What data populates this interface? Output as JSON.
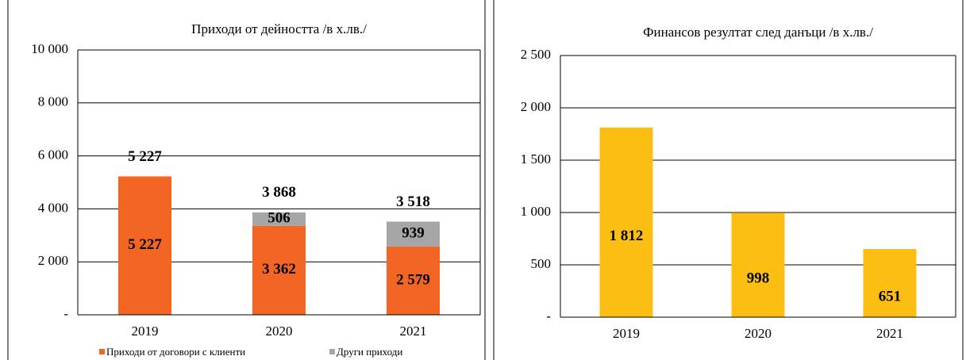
{
  "chart_data": [
    {
      "type": "stacked_bar",
      "title": "Приходи от дейността /в х.лв./",
      "categories": [
        "2019",
        "2020",
        "2021"
      ],
      "series": [
        {
          "name": "Приходи от договори с клиенти",
          "color": "#f26522",
          "values": [
            5227,
            3362,
            2579
          ],
          "value_labels": [
            "5 227",
            "3 362",
            "2 579"
          ]
        },
        {
          "name": "Други приходи",
          "color": "#a6a6a6",
          "values": [
            null,
            506,
            939
          ],
          "value_labels": [
            null,
            "506",
            "939"
          ]
        }
      ],
      "totals": [
        5227,
        3868,
        3518
      ],
      "total_labels": [
        "5 227",
        "3 868",
        "3 518"
      ],
      "ylim": [
        0,
        10000
      ],
      "yticks": [
        {
          "value": 0,
          "label": "-"
        },
        {
          "value": 2000,
          "label": "2 000"
        },
        {
          "value": 4000,
          "label": "4 000"
        },
        {
          "value": 6000,
          "label": "6 000"
        },
        {
          "value": 8000,
          "label": "8 000"
        },
        {
          "value": 10000,
          "label": "10 000"
        }
      ],
      "grid": true,
      "legend": "bottom"
    },
    {
      "type": "bar",
      "title": "Финансов резултат след данъци /в х.лв./",
      "categories": [
        "2019",
        "2020",
        "2021"
      ],
      "values": [
        1812,
        998,
        651
      ],
      "value_labels": [
        "1 812",
        "998",
        "651"
      ],
      "color": "#fdbe12",
      "ylim": [
        0,
        2500
      ],
      "yticks": [
        {
          "value": 0,
          "label": "-"
        },
        500,
        {
          "value": 1000,
          "label": "1 000"
        },
        {
          "value": 1500,
          "label": "1 500"
        },
        {
          "value": 2000,
          "label": "2 000"
        },
        {
          "value": 2500,
          "label": "2 500"
        }
      ],
      "grid": true
    }
  ]
}
